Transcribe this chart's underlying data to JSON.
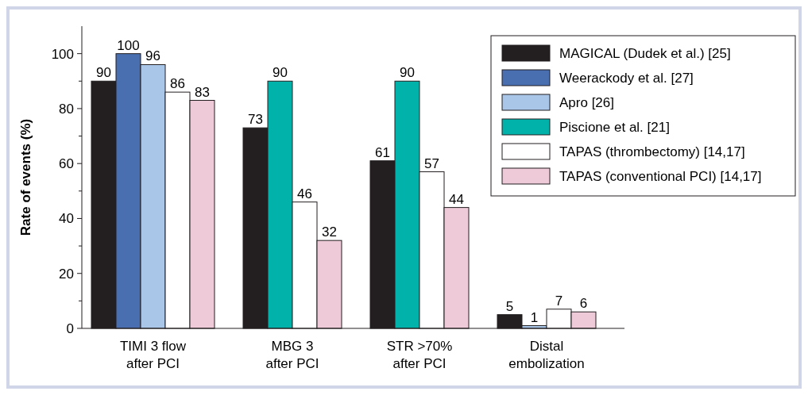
{
  "chart_data": {
    "type": "bar",
    "ylabel": "Rate of events (%)",
    "categories": [
      "TIMI 3 flow\nafter PCI",
      "MBG 3\nafter PCI",
      "STR >70%\nafter PCI",
      "Distal\nembolization"
    ],
    "series": [
      {
        "name": "MAGICAL (Dudek et al.) [25]",
        "color": "#231f20",
        "values": [
          90,
          73,
          61,
          5
        ]
      },
      {
        "name": "Weerackody et al. [27]",
        "color": "#4a6fb0",
        "values": [
          100,
          null,
          null,
          null
        ]
      },
      {
        "name": "Apro [26]",
        "color": "#a9c6e8",
        "values": [
          96,
          null,
          null,
          1
        ]
      },
      {
        "name": "Piscione et al. [21]",
        "color": "#00b2a9",
        "values": [
          null,
          90,
          90,
          null
        ]
      },
      {
        "name": "TAPAS (thrombectomy) [14,17]",
        "color": "#ffffff",
        "values": [
          86,
          46,
          57,
          7
        ]
      },
      {
        "name": "TAPAS (conventional PCI) [14,17]",
        "color": "#eec9d8",
        "values": [
          83,
          32,
          44,
          6
        ]
      }
    ],
    "ylim": [
      0,
      110
    ],
    "yticks": [
      0,
      20,
      40,
      60,
      80,
      100
    ],
    "data_labels": true,
    "legend": "top right",
    "grid": false
  }
}
